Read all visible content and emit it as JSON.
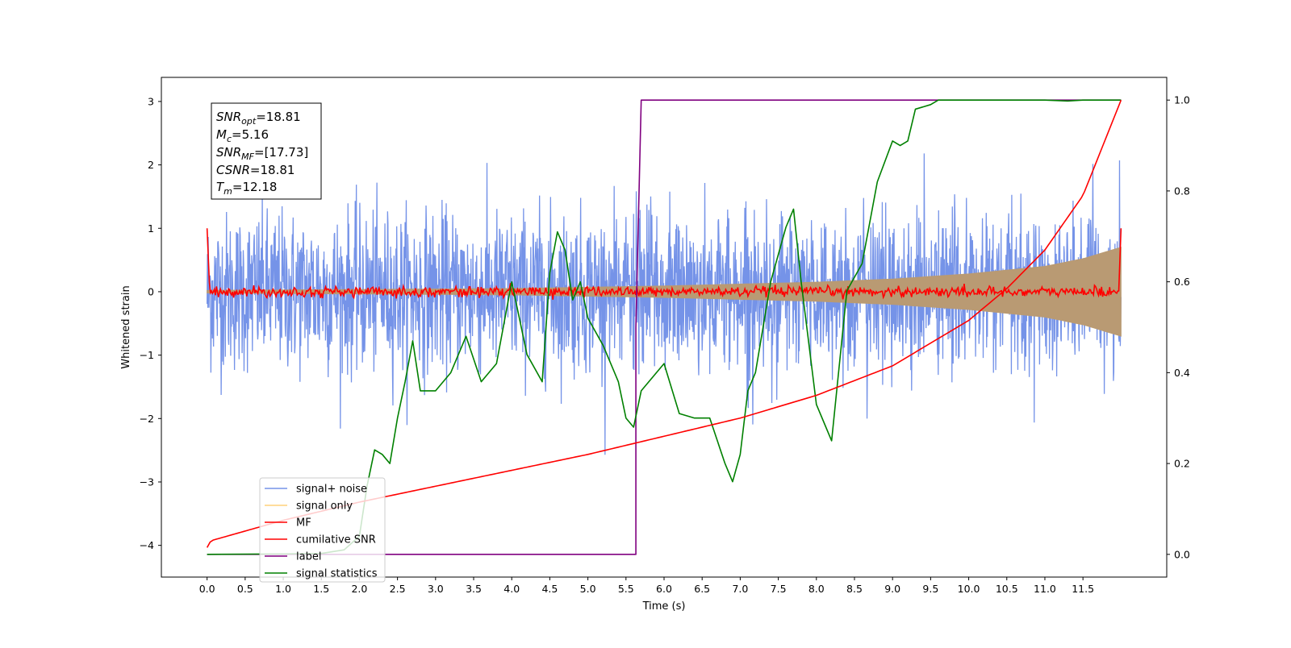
{
  "chart_data": {
    "type": "line",
    "xlabel": "Time (s)",
    "ylabel": "Whitened strain",
    "xlim": [
      -0.6,
      12.6
    ],
    "ylim": [
      -4.5,
      3.38
    ],
    "y2lim": [
      -0.05,
      1.05
    ],
    "x_ticks": [
      "0.0",
      "0.5",
      "1.0",
      "1.5",
      "2.0",
      "2.5",
      "3.0",
      "3.5",
      "4.0",
      "4.5",
      "5.0",
      "5.5",
      "6.0",
      "6.5",
      "7.0",
      "7.5",
      "8.0",
      "8.5",
      "9.0",
      "9.5",
      "10.0",
      "10.5",
      "11.0",
      "11.5"
    ],
    "y_ticks": [
      "3",
      "2",
      "1",
      "0",
      "−1",
      "−2",
      "−3",
      "−4"
    ],
    "y2_ticks": [
      "1.0",
      "0.8",
      "0.6",
      "0.4",
      "0.2",
      "0.0"
    ],
    "legend_position": "lower-left",
    "annotation": {
      "lines": [
        {
          "base": "SNR",
          "sub": "opt",
          "value": "=18.81"
        },
        {
          "base": "M",
          "sub": "c",
          "value": "=5.16"
        },
        {
          "base": "SNR",
          "sub": "MF",
          "value": "=[17.73]"
        },
        {
          "base": "CSNR",
          "sub": "",
          "value": "=18.81"
        },
        {
          "base": "T",
          "sub": "m",
          "value": "=12.18"
        }
      ]
    },
    "series": [
      {
        "name": "signal+ noise",
        "color": "#7593e8",
        "axis": "left",
        "kind": "noise",
        "x_range": [
          0,
          12
        ],
        "std": 0.62,
        "envelope": [
          [
            0,
            1.1
          ],
          [
            2.5,
            1.8
          ],
          [
            5,
            1.9
          ],
          [
            10,
            1.8
          ],
          [
            12,
            1.7
          ]
        ]
      },
      {
        "name": "signal only",
        "color": "#b99a73",
        "axis": "left",
        "kind": "chirp-envelope",
        "x": [
          0,
          4,
          6,
          8,
          9,
          10,
          11,
          11.5,
          12
        ],
        "amp": [
          0.02,
          0.05,
          0.09,
          0.15,
          0.2,
          0.28,
          0.4,
          0.52,
          0.7
        ]
      },
      {
        "name": "MF",
        "color": "#ff0000",
        "axis": "left",
        "kind": "noise",
        "x_range": [
          0,
          12
        ],
        "std": 0.04,
        "start_value": 1.0
      },
      {
        "name": "cumilative SNR",
        "color": "#ff0000",
        "axis": "right",
        "x": [
          0,
          0.05,
          1,
          2,
          3,
          4,
          5,
          6,
          7,
          8,
          9,
          10,
          10.5,
          11,
          11.5,
          12
        ],
        "values": [
          0.015,
          0.03,
          0.075,
          0.115,
          0.15,
          0.185,
          0.22,
          0.26,
          0.3,
          0.35,
          0.415,
          0.515,
          0.585,
          0.67,
          0.79,
          1.0
        ]
      },
      {
        "name": "label",
        "color": "#800080",
        "axis": "right",
        "x": [
          0,
          5.63,
          5.63,
          5.7,
          12
        ],
        "values": [
          0,
          0,
          0.5,
          1,
          1
        ]
      },
      {
        "name": "signal statistics",
        "color": "#008000",
        "axis": "right",
        "x": [
          0,
          1,
          1.5,
          1.8,
          2.0,
          2.1,
          2.2,
          2.3,
          2.4,
          2.5,
          2.6,
          2.7,
          2.8,
          3.0,
          3.2,
          3.4,
          3.6,
          3.8,
          4.0,
          4.2,
          4.4,
          4.5,
          4.6,
          4.7,
          4.8,
          4.9,
          5.0,
          5.2,
          5.4,
          5.5,
          5.6,
          5.7,
          5.8,
          6.0,
          6.2,
          6.4,
          6.6,
          6.8,
          6.9,
          7.0,
          7.1,
          7.2,
          7.4,
          7.6,
          7.7,
          7.8,
          8.0,
          8.2,
          8.4,
          8.6,
          8.8,
          9.0,
          9.1,
          9.2,
          9.3,
          9.5,
          9.6,
          10,
          11,
          11.3,
          11.5,
          12
        ],
        "values": [
          0,
          0.001,
          0.002,
          0.01,
          0.04,
          0.15,
          0.23,
          0.22,
          0.2,
          0.3,
          0.38,
          0.47,
          0.36,
          0.36,
          0.4,
          0.48,
          0.38,
          0.42,
          0.6,
          0.44,
          0.38,
          0.62,
          0.71,
          0.67,
          0.56,
          0.6,
          0.52,
          0.46,
          0.38,
          0.3,
          0.28,
          0.36,
          0.38,
          0.42,
          0.31,
          0.3,
          0.3,
          0.2,
          0.16,
          0.22,
          0.36,
          0.4,
          0.6,
          0.72,
          0.76,
          0.6,
          0.33,
          0.25,
          0.58,
          0.64,
          0.82,
          0.91,
          0.9,
          0.91,
          0.98,
          0.99,
          1.0,
          1.0,
          1.0,
          0.998,
          1.0,
          1.0
        ]
      }
    ]
  }
}
